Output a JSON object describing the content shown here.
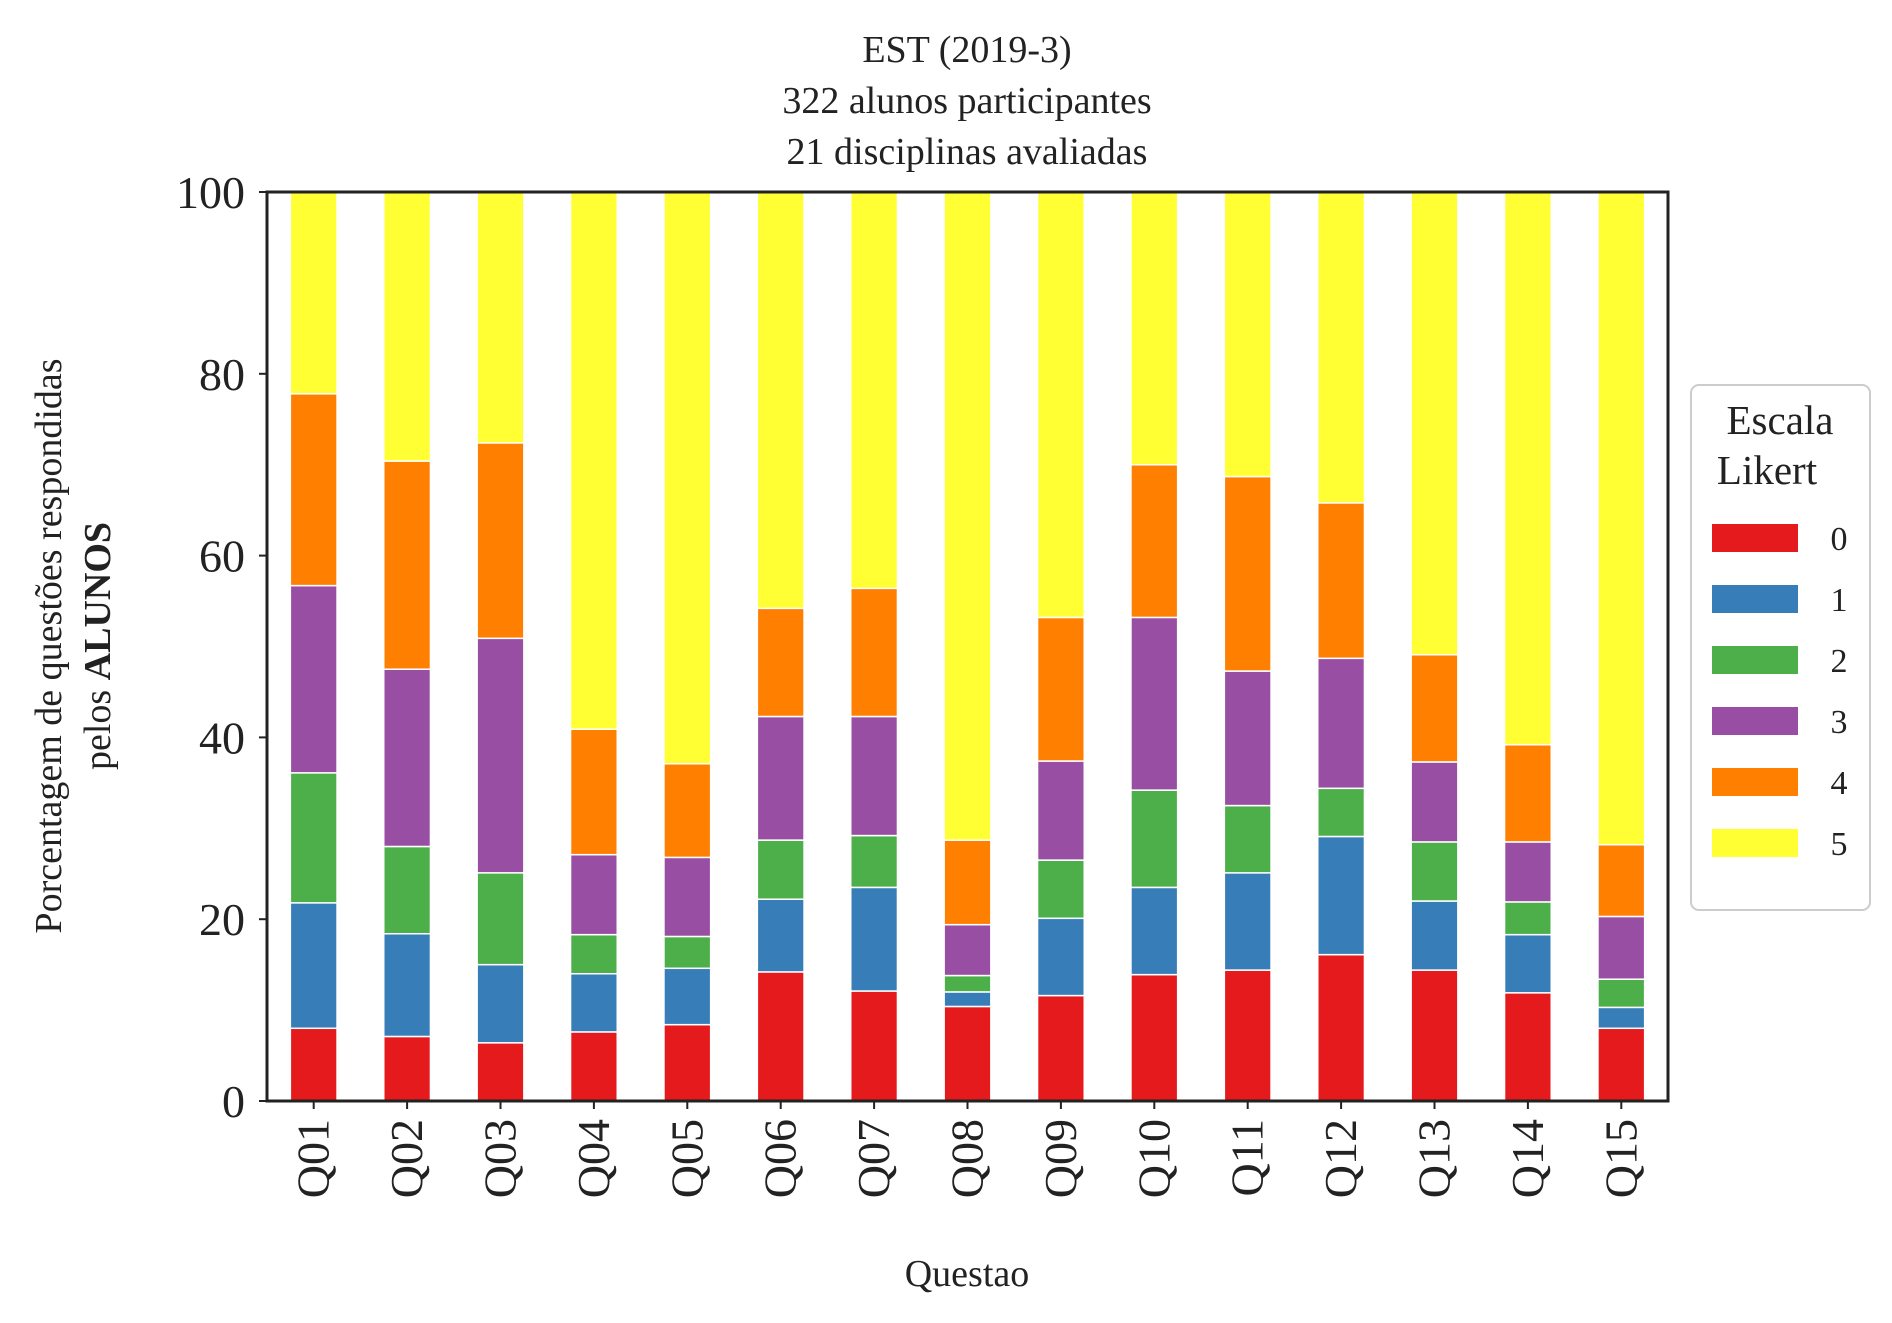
{
  "chart_data": {
    "type": "bar",
    "stacked": true,
    "title": [
      "EST (2019-3)",
      "322 alunos participantes",
      "21 disciplinas avaliadas"
    ],
    "xlabel": "Questao",
    "ylabel_line1": "Porcentagem de questões respondidas",
    "ylabel_line2_prefix": "pelos ",
    "ylabel_line2_bold": "ALUNOS",
    "ylim": [
      0,
      100
    ],
    "yticks": [
      0,
      20,
      40,
      60,
      80,
      100
    ],
    "grid": false,
    "legend": {
      "title": [
        "Escala",
        "Likert"
      ],
      "placement": "right-center"
    },
    "categories": [
      "Q01",
      "Q02",
      "Q03",
      "Q04",
      "Q05",
      "Q06",
      "Q07",
      "Q08",
      "Q09",
      "Q10",
      "Q11",
      "Q12",
      "Q13",
      "Q14",
      "Q15"
    ],
    "series": [
      {
        "name": "0",
        "color": "#e41a1c",
        "values": [
          8.0,
          7.1,
          6.4,
          7.6,
          8.4,
          14.2,
          12.1,
          10.4,
          11.6,
          13.9,
          14.4,
          16.1,
          14.4,
          11.9,
          8.0
        ]
      },
      {
        "name": "1",
        "color": "#377eb8",
        "values": [
          13.8,
          11.3,
          8.6,
          6.4,
          6.2,
          8.0,
          11.4,
          1.6,
          8.5,
          9.6,
          10.7,
          13.0,
          7.6,
          6.4,
          2.3
        ]
      },
      {
        "name": "2",
        "color": "#4daf4a",
        "values": [
          14.3,
          9.6,
          10.1,
          4.3,
          3.5,
          6.5,
          5.7,
          1.8,
          6.4,
          10.7,
          7.4,
          5.3,
          6.5,
          3.6,
          3.1
        ]
      },
      {
        "name": "3",
        "color": "#984ea3",
        "values": [
          20.6,
          19.5,
          25.8,
          8.8,
          8.7,
          13.6,
          13.1,
          5.6,
          10.9,
          19.0,
          14.8,
          14.3,
          8.8,
          6.6,
          6.9
        ]
      },
      {
        "name": "4",
        "color": "#ff7f00",
        "values": [
          21.1,
          22.9,
          21.5,
          13.8,
          10.3,
          11.9,
          14.1,
          9.3,
          15.8,
          16.8,
          21.4,
          17.1,
          11.8,
          10.7,
          7.9
        ]
      },
      {
        "name": "5",
        "color": "#ffff33",
        "values": [
          22.2,
          29.6,
          27.6,
          59.1,
          62.9,
          45.8,
          43.6,
          71.3,
          46.8,
          30.0,
          31.3,
          34.2,
          50.9,
          60.8,
          71.8
        ]
      }
    ]
  }
}
